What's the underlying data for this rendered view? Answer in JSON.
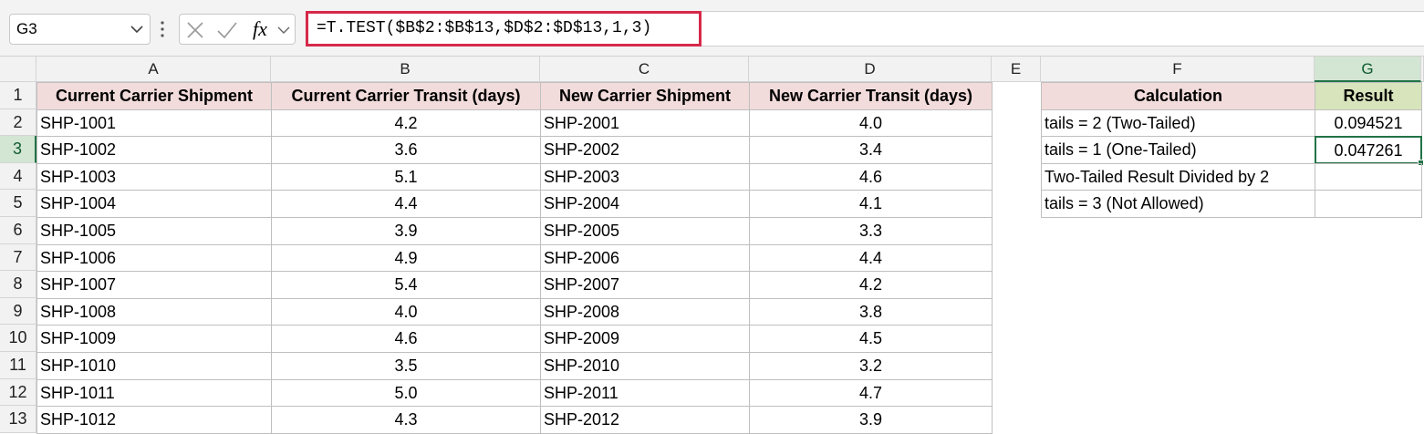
{
  "formula_bar": {
    "name_box": "G3",
    "fx": "fx",
    "formula": "=T.TEST($B$2:$B$13,$D$2:$D$13,1,3)"
  },
  "columns": [
    "A",
    "B",
    "C",
    "D",
    "E",
    "F",
    "G"
  ],
  "row_numbers": [
    "1",
    "2",
    "3",
    "4",
    "5",
    "6",
    "7",
    "8",
    "9",
    "10",
    "11",
    "12",
    "13"
  ],
  "table": {
    "header": [
      "Current Carrier Shipment",
      "Current Carrier Transit (days)",
      "New Carrier Shipment",
      "New Carrier Transit (days)"
    ],
    "rows": [
      [
        "SHP-1001",
        "4.2",
        "SHP-2001",
        "4.0"
      ],
      [
        "SHP-1002",
        "3.6",
        "SHP-2002",
        "3.4"
      ],
      [
        "SHP-1003",
        "5.1",
        "SHP-2003",
        "4.6"
      ],
      [
        "SHP-1004",
        "4.4",
        "SHP-2004",
        "4.1"
      ],
      [
        "SHP-1005",
        "3.9",
        "SHP-2005",
        "3.3"
      ],
      [
        "SHP-1006",
        "4.9",
        "SHP-2006",
        "4.4"
      ],
      [
        "SHP-1007",
        "5.4",
        "SHP-2007",
        "4.2"
      ],
      [
        "SHP-1008",
        "4.0",
        "SHP-2008",
        "3.8"
      ],
      [
        "SHP-1009",
        "4.6",
        "SHP-2009",
        "4.5"
      ],
      [
        "SHP-1010",
        "3.5",
        "SHP-2010",
        "3.2"
      ],
      [
        "SHP-1011",
        "5.0",
        "SHP-2011",
        "4.7"
      ],
      [
        "SHP-1012",
        "4.3",
        "SHP-2012",
        "3.9"
      ]
    ]
  },
  "calc_table": {
    "header": [
      "Calculation",
      "Result"
    ],
    "rows": [
      {
        "label": "tails = 2 (Two-Tailed)",
        "result": "0.094521"
      },
      {
        "label": "tails = 1 (One-Tailed)",
        "result": "0.047261"
      },
      {
        "label": "Two-Tailed Result Divided by 2"
      },
      {
        "label": "tails = 3 (Not Allowed)"
      }
    ]
  }
}
